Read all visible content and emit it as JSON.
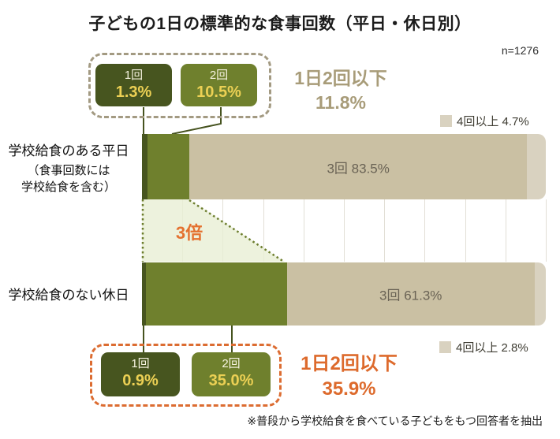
{
  "title": "子どもの1日の標準的な食事回数（平日・休日別）",
  "sample_size": "n=1276",
  "footnote": "※普段から学校給食を食べている子どもをもつ回答者を抽出",
  "colors": {
    "dark_green": "#47551f",
    "olive_green": "#6f802d",
    "tan": "#cac0a3",
    "light_tan": "#d9d2c0",
    "light_green_band": "#e9efd4",
    "accent_orange": "#dd6a2c",
    "khaki_text": "#a89c79",
    "value_yellow": "#ecd054",
    "bar_label_text": "#6a6355"
  },
  "row_labels": {
    "weekday": "学校給食のある平日",
    "weekday_note_line1": "（食事回数には",
    "weekday_note_line2": "学校給食を含む）",
    "holiday": "学校給食のない休日"
  },
  "chart_data": {
    "type": "bar",
    "orientation": "horizontal",
    "stacked": true,
    "unit": "%",
    "xlim": [
      0,
      100
    ],
    "gridlines_every": 10,
    "categories": [
      "学校給食のある平日（食事回数には学校給食を含む）",
      "学校給食のない休日"
    ],
    "series": [
      {
        "name": "1回",
        "values": [
          1.3,
          0.9
        ],
        "color": "#47551f"
      },
      {
        "name": "2回",
        "values": [
          10.5,
          35.0
        ],
        "color": "#6f802d"
      },
      {
        "name": "3回",
        "values": [
          83.5,
          61.3
        ],
        "color": "#cac0a3"
      },
      {
        "name": "4回以上",
        "values": [
          4.7,
          2.8
        ],
        "color": "#d9d2c0"
      }
    ],
    "bar_value_labels": [
      "3回 83.5%",
      "3回 61.3%"
    ]
  },
  "annotations": {
    "weekday_callout": {
      "title": "1日2回以下",
      "value": "11.8%",
      "items": [
        {
          "label": "1回",
          "value": "1.3%"
        },
        {
          "label": "2回",
          "value": "10.5%"
        }
      ]
    },
    "holiday_callout": {
      "title": "1日2回以下",
      "value": "35.9%",
      "items": [
        {
          "label": "1回",
          "value": "0.9%"
        },
        {
          "label": "2回",
          "value": "35.0%"
        }
      ]
    },
    "multiplier": "3倍",
    "legend_weekday": "4回以上 4.7%",
    "legend_holiday": "4回以上 2.8%"
  }
}
